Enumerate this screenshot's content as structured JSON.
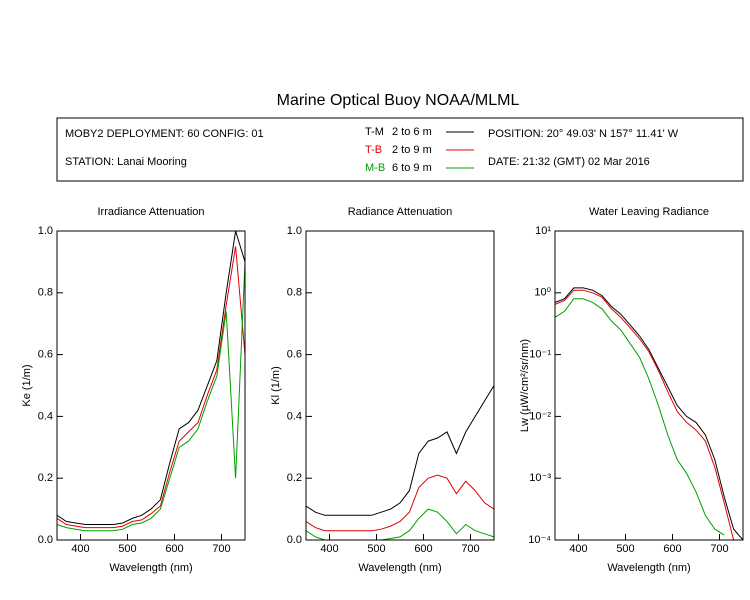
{
  "title": "Marine Optical Buoy NOAA/MLML",
  "info": {
    "deployment": "MOBY2 DEPLOYMENT: 60 CONFIG: 01",
    "station": "STATION: Lanai Mooring",
    "position": "POSITION: 20° 49.03' N   157° 11.41' W",
    "date": "DATE: 21:32 (GMT) 02 Mar 2016",
    "ranges": [
      "2 to 6  m",
      "2 to 9  m",
      "6 to 9  m"
    ]
  },
  "chart_data": [
    {
      "type": "line",
      "title": "Irradiance Attenuation",
      "x_label": "Wavelength (nm)",
      "y_label": "Ke  (1/m)",
      "x": [
        350,
        370,
        390,
        410,
        430,
        450,
        470,
        490,
        510,
        530,
        550,
        570,
        590,
        610,
        630,
        650,
        670,
        690,
        710,
        730,
        750
      ],
      "series": [
        {
          "name": "T-M",
          "color": "#000000",
          "values": [
            0.08,
            0.06,
            0.055,
            0.05,
            0.05,
            0.05,
            0.05,
            0.055,
            0.07,
            0.08,
            0.1,
            0.13,
            0.25,
            0.36,
            0.38,
            0.42,
            0.5,
            0.58,
            0.8,
            1.0,
            0.9
          ]
        },
        {
          "name": "T-B",
          "color": "#e00000",
          "values": [
            0.07,
            0.05,
            0.045,
            0.04,
            0.04,
            0.04,
            0.04,
            0.045,
            0.06,
            0.065,
            0.085,
            0.11,
            0.22,
            0.32,
            0.35,
            0.38,
            0.47,
            0.55,
            0.76,
            0.95,
            0.6
          ]
        },
        {
          "name": "M-B",
          "color": "#00a000",
          "values": [
            0.05,
            0.04,
            0.035,
            0.03,
            0.03,
            0.03,
            0.03,
            0.035,
            0.05,
            0.055,
            0.07,
            0.1,
            0.2,
            0.3,
            0.32,
            0.36,
            0.45,
            0.53,
            0.74,
            0.2,
            0.9
          ]
        }
      ],
      "xlim": [
        350,
        750
      ],
      "xticks": [
        400,
        500,
        600,
        700
      ],
      "ylim": [
        0,
        1
      ],
      "yticks": [
        {
          "value": 0,
          "label": "0.0"
        },
        0.2,
        0.4,
        0.6,
        0.8,
        {
          "value": 1,
          "label": "1.0"
        }
      ]
    },
    {
      "type": "line",
      "title": "Radiance Attenuation",
      "x_label": "Wavelength (nm)",
      "y_label": "Kl  (1/m)",
      "x": [
        350,
        370,
        390,
        410,
        430,
        450,
        470,
        490,
        510,
        530,
        550,
        570,
        590,
        610,
        630,
        650,
        670,
        690,
        710,
        730,
        750
      ],
      "series": [
        {
          "name": "T-M",
          "color": "#000000",
          "values": [
            0.11,
            0.09,
            0.08,
            0.08,
            0.08,
            0.08,
            0.08,
            0.08,
            0.09,
            0.1,
            0.12,
            0.16,
            0.28,
            0.32,
            0.33,
            0.35,
            0.28,
            0.35,
            0.4,
            0.45,
            0.5
          ]
        },
        {
          "name": "T-B",
          "color": "#e00000",
          "values": [
            0.06,
            0.04,
            0.03,
            0.03,
            0.03,
            0.03,
            0.03,
            0.03,
            0.035,
            0.045,
            0.06,
            0.09,
            0.17,
            0.2,
            0.21,
            0.2,
            0.15,
            0.19,
            0.16,
            0.12,
            0.1
          ]
        },
        {
          "name": "M-B",
          "color": "#00a000",
          "values": [
            0.03,
            0.01,
            0,
            0,
            0,
            0,
            0,
            0,
            0,
            0.005,
            0.01,
            0.03,
            0.07,
            0.1,
            0.09,
            0.06,
            0.02,
            0.05,
            0.03,
            0.02,
            0.01
          ]
        }
      ],
      "xlim": [
        350,
        750
      ],
      "xticks": [
        400,
        500,
        600,
        700
      ],
      "ylim": [
        0,
        1
      ],
      "yticks": [
        {
          "value": 0,
          "label": "0.0"
        },
        0.2,
        0.4,
        0.6,
        0.8,
        {
          "value": 1,
          "label": "1.0"
        }
      ]
    },
    {
      "type": "line",
      "title": "Water Leaving Radiance",
      "x_label": "Wavelength (nm)",
      "y_label": "Lw  (µW/cm²/sr/nm)",
      "log_y": true,
      "x": [
        350,
        370,
        390,
        410,
        430,
        450,
        470,
        490,
        510,
        530,
        550,
        570,
        590,
        610,
        630,
        650,
        670,
        690,
        710,
        730,
        750
      ],
      "series": [
        {
          "name": "T-M",
          "color": "#000000",
          "values": [
            0.7,
            0.8,
            1.2,
            1.2,
            1.1,
            0.9,
            0.6,
            0.45,
            0.3,
            0.2,
            0.12,
            0.06,
            0.03,
            0.015,
            0.01,
            0.008,
            0.005,
            0.002,
            0.0005,
            0.00015,
            0.0001
          ]
        },
        {
          "name": "T-B",
          "color": "#e00000",
          "values": [
            0.65,
            0.75,
            1.1,
            1.1,
            1.0,
            0.85,
            0.55,
            0.4,
            0.27,
            0.18,
            0.11,
            0.055,
            0.025,
            0.012,
            0.008,
            0.006,
            0.004,
            0.0015,
            0.0004,
            0.0001,
            0.0001
          ]
        },
        {
          "name": "M-B",
          "color": "#00a000",
          "values": [
            0.4,
            0.5,
            0.8,
            0.8,
            0.7,
            0.55,
            0.35,
            0.25,
            0.15,
            0.09,
            0.04,
            0.015,
            0.005,
            0.002,
            0.0012,
            0.0006,
            0.00025,
            0.00015,
            0.00012,
            null,
            null
          ]
        }
      ],
      "xlim": [
        350,
        750
      ],
      "xticks": [
        400,
        500,
        600,
        700
      ],
      "ylim": [
        0.0001,
        10
      ],
      "yticks": [
        {
          "value": 0.0001,
          "label": "10⁻⁴"
        },
        {
          "value": 0.001,
          "label": "10⁻³"
        },
        {
          "value": 0.01,
          "label": "10⁻²"
        },
        {
          "value": 0.1,
          "label": "10⁻¹"
        },
        {
          "value": 1,
          "label": "10⁰"
        },
        {
          "value": 10,
          "label": "10¹"
        }
      ]
    }
  ]
}
